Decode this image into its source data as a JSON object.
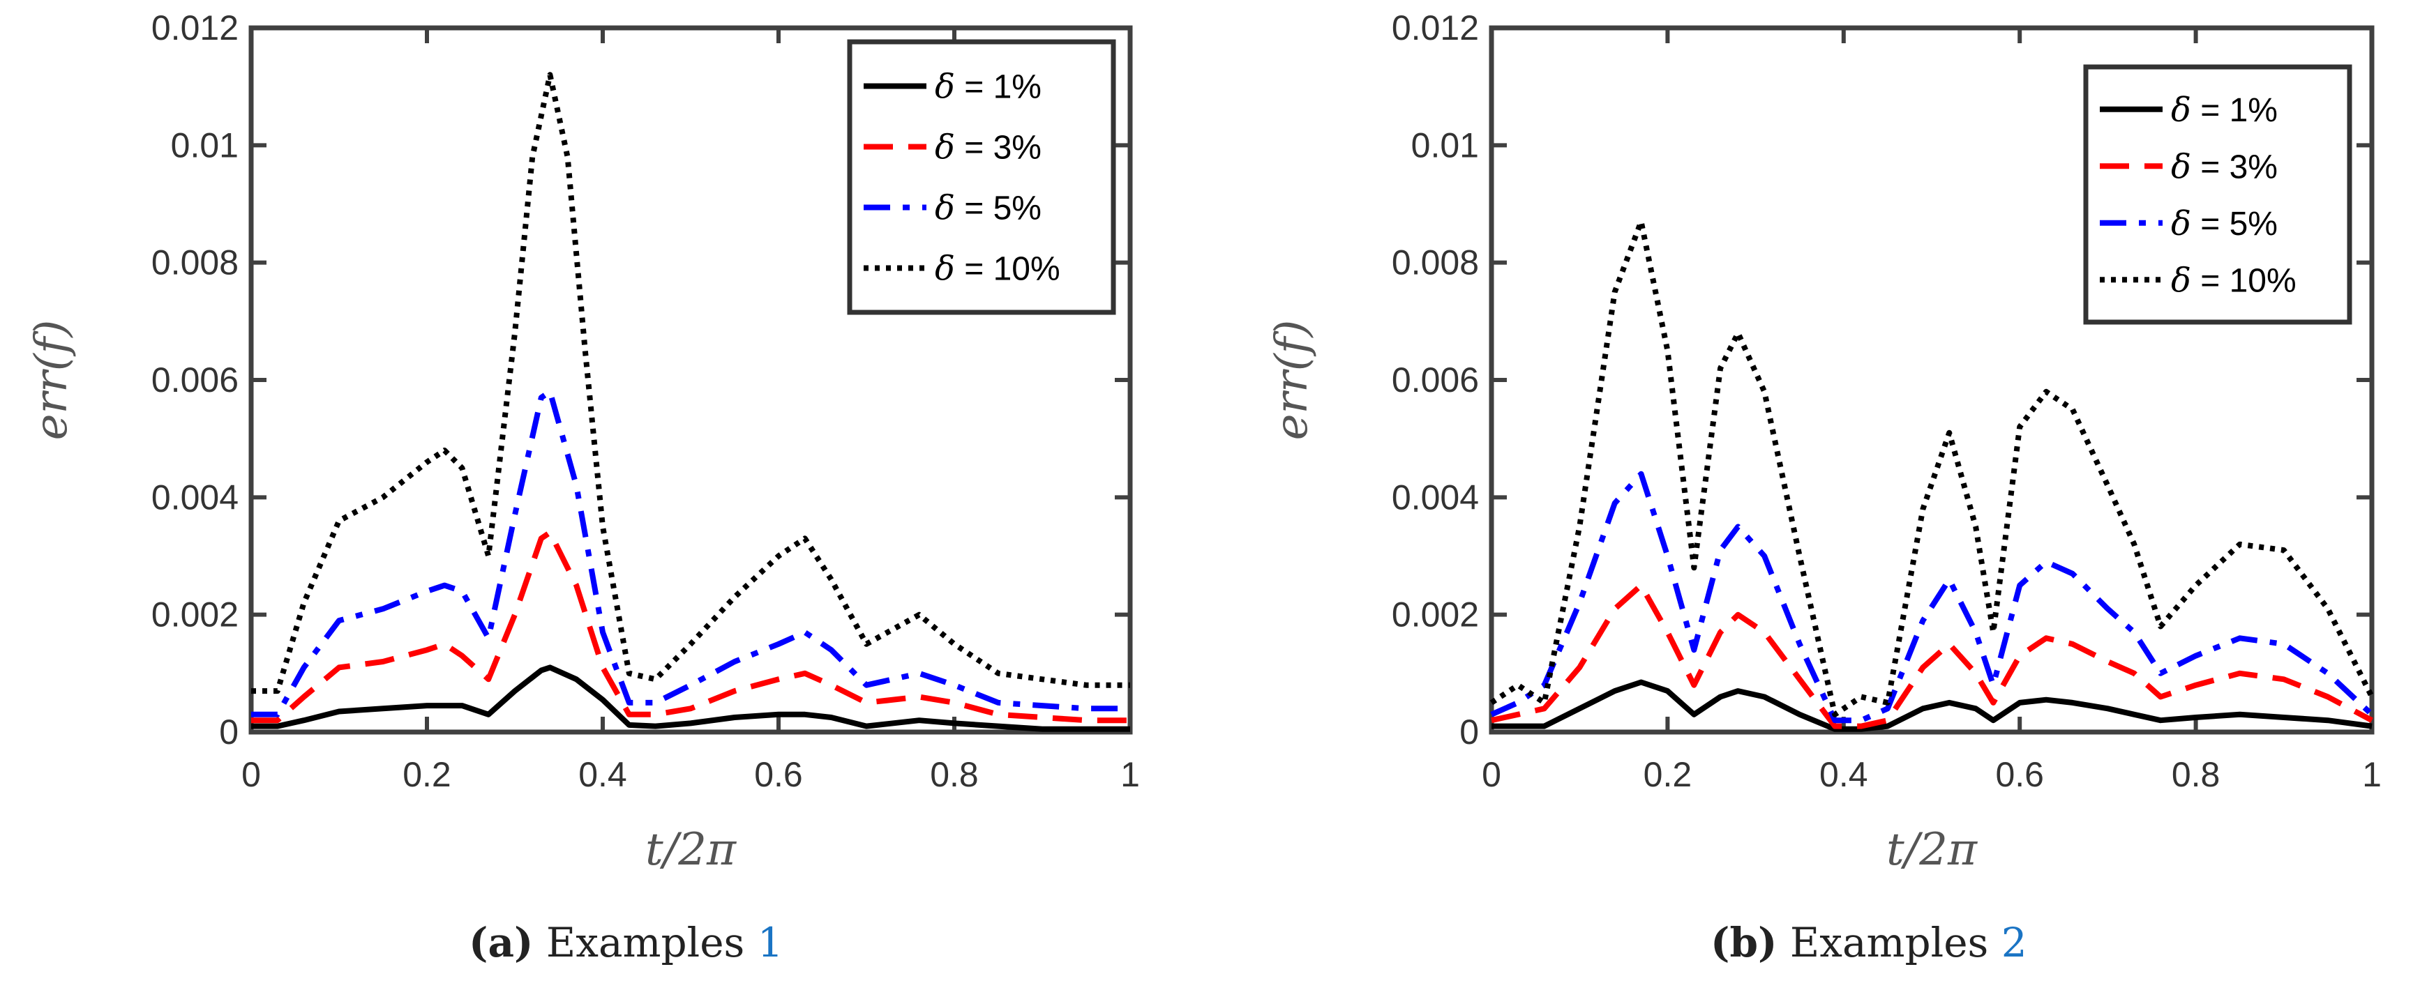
{
  "captions": [
    {
      "tag": "(a)",
      "text": "Examples",
      "ref": "1"
    },
    {
      "tag": "(b)",
      "text": "Examples",
      "ref": "2"
    }
  ],
  "colors": {
    "axis": "#404040",
    "tick_text": "#333333",
    "ylabel": "#555555",
    "ref_link": "#1a74c4"
  },
  "chart_data": [
    {
      "type": "line",
      "title": "",
      "xlabel": "t/2π",
      "ylabel": "err(f)",
      "xlim": [
        0,
        1
      ],
      "ylim": [
        0,
        0.012
      ],
      "xticks": [
        0,
        0.2,
        0.4,
        0.6,
        0.8,
        1
      ],
      "xtick_labels": [
        "0",
        "0.2",
        "0.4",
        "0.6",
        "0.8",
        "1"
      ],
      "yticks": [
        0,
        0.002,
        0.004,
        0.006,
        0.008,
        0.01,
        0.012
      ],
      "ytick_labels": [
        "0",
        "0.002",
        "0.004",
        "0.006",
        "0.008",
        "0.01",
        "0.012"
      ],
      "legend_position": "top-right",
      "series": [
        {
          "name": "δ = 1%",
          "delta": "δ",
          "value_label": "= 1%",
          "color": "#000000",
          "style": "solid",
          "x": [
            0,
            0.03,
            0.06,
            0.1,
            0.15,
            0.2,
            0.24,
            0.27,
            0.3,
            0.33,
            0.34,
            0.37,
            0.4,
            0.43,
            0.46,
            0.5,
            0.55,
            0.6,
            0.63,
            0.66,
            0.7,
            0.76,
            0.8,
            0.85,
            0.9,
            0.95,
            1
          ],
          "y": [
            0.0001,
            0.0001,
            0.0002,
            0.00035,
            0.0004,
            0.00045,
            0.00045,
            0.0003,
            0.0007,
            0.00105,
            0.0011,
            0.0009,
            0.00055,
            0.00012,
            0.0001,
            0.00015,
            0.00025,
            0.0003,
            0.0003,
            0.00025,
            0.0001,
            0.0002,
            0.00015,
            0.0001,
            5e-05,
            5e-05,
            5e-05
          ]
        },
        {
          "name": "δ = 3%",
          "delta": "δ",
          "value_label": "= 3%",
          "color": "#ff0000",
          "style": "dashed",
          "x": [
            0,
            0.03,
            0.06,
            0.1,
            0.15,
            0.2,
            0.22,
            0.24,
            0.27,
            0.3,
            0.33,
            0.34,
            0.37,
            0.4,
            0.43,
            0.46,
            0.5,
            0.55,
            0.6,
            0.63,
            0.66,
            0.7,
            0.76,
            0.8,
            0.85,
            0.9,
            0.95,
            1
          ],
          "y": [
            0.0002,
            0.0002,
            0.0006,
            0.0011,
            0.0012,
            0.0014,
            0.0015,
            0.0013,
            0.0009,
            0.002,
            0.0033,
            0.0034,
            0.0025,
            0.0011,
            0.0003,
            0.0003,
            0.0004,
            0.0007,
            0.0009,
            0.001,
            0.0008,
            0.0005,
            0.0006,
            0.0005,
            0.0003,
            0.00025,
            0.0002,
            0.0002
          ]
        },
        {
          "name": "δ = 5%",
          "delta": "δ",
          "value_label": "= 5%",
          "color": "#0000ff",
          "style": "dashdot",
          "x": [
            0,
            0.03,
            0.06,
            0.1,
            0.15,
            0.2,
            0.22,
            0.24,
            0.27,
            0.3,
            0.33,
            0.34,
            0.37,
            0.4,
            0.43,
            0.46,
            0.5,
            0.55,
            0.6,
            0.63,
            0.66,
            0.7,
            0.76,
            0.8,
            0.85,
            0.9,
            0.95,
            1
          ],
          "y": [
            0.0003,
            0.0003,
            0.0011,
            0.0019,
            0.0021,
            0.0024,
            0.0025,
            0.0024,
            0.0016,
            0.0037,
            0.0057,
            0.0058,
            0.0042,
            0.0017,
            0.0005,
            0.0005,
            0.0008,
            0.0012,
            0.0015,
            0.0017,
            0.0014,
            0.0008,
            0.001,
            0.0008,
            0.0005,
            0.00045,
            0.0004,
            0.0004
          ]
        },
        {
          "name": "δ = 10%",
          "delta": "δ",
          "value_label": "= 10%",
          "color": "#000000",
          "style": "dotted",
          "x": [
            0,
            0.03,
            0.06,
            0.1,
            0.15,
            0.2,
            0.22,
            0.24,
            0.27,
            0.3,
            0.32,
            0.34,
            0.36,
            0.38,
            0.4,
            0.43,
            0.46,
            0.5,
            0.55,
            0.6,
            0.63,
            0.66,
            0.7,
            0.76,
            0.8,
            0.85,
            0.9,
            0.95,
            1
          ],
          "y": [
            0.0007,
            0.0007,
            0.0022,
            0.0036,
            0.004,
            0.0046,
            0.0048,
            0.0045,
            0.003,
            0.0068,
            0.0098,
            0.0112,
            0.0098,
            0.0065,
            0.0035,
            0.001,
            0.0009,
            0.0015,
            0.0023,
            0.003,
            0.0033,
            0.0026,
            0.0015,
            0.002,
            0.0015,
            0.001,
            0.0009,
            0.0008,
            0.0008
          ]
        }
      ]
    },
    {
      "type": "line",
      "title": "",
      "xlabel": "t/2π",
      "ylabel": "err(f)",
      "xlim": [
        0,
        1
      ],
      "ylim": [
        0,
        0.012
      ],
      "xticks": [
        0,
        0.2,
        0.4,
        0.6,
        0.8,
        1
      ],
      "xtick_labels": [
        "0",
        "0.2",
        "0.4",
        "0.6",
        "0.8",
        "1"
      ],
      "yticks": [
        0,
        0.002,
        0.004,
        0.006,
        0.008,
        0.01,
        0.012
      ],
      "ytick_labels": [
        "0",
        "0.002",
        "0.004",
        "0.006",
        "0.008",
        "0.01",
        "0.012"
      ],
      "legend_position": "top-right",
      "series": [
        {
          "name": "δ = 1%",
          "delta": "δ",
          "value_label": "= 1%",
          "color": "#000000",
          "style": "solid",
          "x": [
            0,
            0.03,
            0.06,
            0.1,
            0.14,
            0.17,
            0.2,
            0.23,
            0.26,
            0.28,
            0.31,
            0.35,
            0.39,
            0.42,
            0.45,
            0.49,
            0.52,
            0.55,
            0.57,
            0.6,
            0.63,
            0.66,
            0.7,
            0.73,
            0.76,
            0.8,
            0.85,
            0.9,
            0.95,
            1
          ],
          "y": [
            0.0001,
            0.0001,
            0.0001,
            0.0004,
            0.0007,
            0.00085,
            0.0007,
            0.0003,
            0.0006,
            0.0007,
            0.0006,
            0.0003,
            5e-05,
            5e-05,
            0.0001,
            0.0004,
            0.0005,
            0.0004,
            0.0002,
            0.0005,
            0.00055,
            0.0005,
            0.0004,
            0.0003,
            0.0002,
            0.00025,
            0.0003,
            0.00025,
            0.0002,
            0.0001
          ]
        },
        {
          "name": "δ = 3%",
          "delta": "δ",
          "value_label": "= 3%",
          "color": "#ff0000",
          "style": "dashed",
          "x": [
            0,
            0.03,
            0.06,
            0.1,
            0.14,
            0.17,
            0.2,
            0.23,
            0.26,
            0.28,
            0.31,
            0.35,
            0.39,
            0.42,
            0.45,
            0.49,
            0.52,
            0.55,
            0.57,
            0.6,
            0.63,
            0.66,
            0.7,
            0.73,
            0.76,
            0.8,
            0.85,
            0.9,
            0.95,
            1
          ],
          "y": [
            0.0002,
            0.0003,
            0.0004,
            0.0011,
            0.0021,
            0.0025,
            0.0017,
            0.0008,
            0.0017,
            0.002,
            0.0017,
            0.0009,
            0.0001,
            0.0001,
            0.0002,
            0.0011,
            0.0015,
            0.001,
            0.0005,
            0.0013,
            0.0016,
            0.0015,
            0.0012,
            0.001,
            0.0006,
            0.0008,
            0.001,
            0.0009,
            0.0006,
            0.0002
          ]
        },
        {
          "name": "δ = 5%",
          "delta": "δ",
          "value_label": "= 5%",
          "color": "#0000ff",
          "style": "dashdot",
          "x": [
            0,
            0.03,
            0.06,
            0.1,
            0.14,
            0.17,
            0.2,
            0.23,
            0.26,
            0.28,
            0.31,
            0.35,
            0.39,
            0.42,
            0.45,
            0.49,
            0.52,
            0.55,
            0.57,
            0.6,
            0.63,
            0.66,
            0.7,
            0.73,
            0.76,
            0.8,
            0.85,
            0.9,
            0.95,
            1
          ],
          "y": [
            0.0003,
            0.0005,
            0.0008,
            0.0022,
            0.0039,
            0.0044,
            0.003,
            0.0014,
            0.0031,
            0.0035,
            0.003,
            0.0015,
            0.0002,
            0.0002,
            0.0004,
            0.0019,
            0.0026,
            0.0017,
            0.0008,
            0.0025,
            0.0029,
            0.0027,
            0.0021,
            0.0017,
            0.001,
            0.0013,
            0.0016,
            0.0015,
            0.001,
            0.0003
          ]
        },
        {
          "name": "δ = 10%",
          "delta": "δ",
          "value_label": "= 10%",
          "color": "#000000",
          "style": "dotted",
          "x": [
            0,
            0.03,
            0.06,
            0.1,
            0.14,
            0.17,
            0.2,
            0.23,
            0.26,
            0.28,
            0.31,
            0.35,
            0.39,
            0.42,
            0.45,
            0.49,
            0.52,
            0.55,
            0.57,
            0.6,
            0.63,
            0.66,
            0.7,
            0.73,
            0.76,
            0.8,
            0.85,
            0.9,
            0.95,
            1
          ],
          "y": [
            0.0005,
            0.0008,
            0.0005,
            0.0035,
            0.0075,
            0.0087,
            0.0065,
            0.0028,
            0.0062,
            0.0068,
            0.0058,
            0.003,
            0.0003,
            0.0006,
            0.0005,
            0.0038,
            0.0051,
            0.0035,
            0.0017,
            0.0052,
            0.0058,
            0.0055,
            0.0042,
            0.0032,
            0.0018,
            0.0025,
            0.0032,
            0.0031,
            0.0021,
            0.0006
          ]
        }
      ]
    }
  ]
}
